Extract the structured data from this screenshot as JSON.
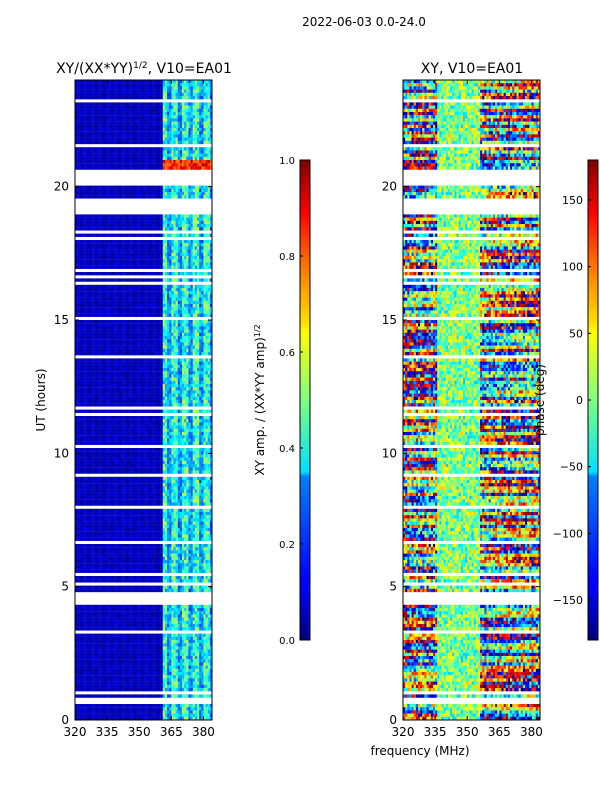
{
  "figure_title": "2022-06-03 0.0-24.0",
  "shared_xlabel": "frequency (MHz)",
  "chart_data": [
    {
      "type": "heatmap",
      "title": "XY/(XX*YY)^{1/2}, V10=EA01",
      "title_main": "XY/(XX*YY)",
      "title_exp": "1/2",
      "title_tail": ", V10=EA01",
      "xlabel": "frequency (MHz)",
      "ylabel": "UT (hours)",
      "xlim": [
        320,
        384
      ],
      "ylim": [
        0,
        24
      ],
      "xticks": [
        320,
        335,
        350,
        365,
        380
      ],
      "yticks": [
        0,
        5,
        10,
        15,
        20
      ],
      "colorbar": {
        "label": "XY amp. / (XX*YY amp)^{1/2}",
        "label_main": "XY amp. / (XX*YY amp)",
        "label_exp": "1/2",
        "range": [
          0.0,
          1.0
        ],
        "ticks": [
          "0.0",
          "0.2",
          "0.4",
          "0.6",
          "0.8",
          "1.0"
        ],
        "colormap": "jet"
      },
      "description": "Mostly low amplitude (~0.05) across 320-360 MHz; bright striped band 361-384 MHz (~0.2-0.55) with a hot patch near 20.5 UT (~0.85-0.95). Horizontal white gaps are flagged times."
    },
    {
      "type": "heatmap",
      "title": "XY, V10=EA01",
      "xlabel": "frequency (MHz)",
      "ylabel": "",
      "xlim": [
        320,
        384
      ],
      "ylim": [
        0,
        24
      ],
      "xticks": [
        320,
        335,
        350,
        365,
        380
      ],
      "yticks": [
        0,
        5,
        10,
        15,
        20
      ],
      "colorbar": {
        "label": "phase (deg)",
        "range": [
          -180,
          180
        ],
        "ticks": [
          "150",
          "100",
          "50",
          "0",
          "−50",
          "−100",
          "−150"
        ],
        "colormap": "jet"
      },
      "description": "Noisy XY phase spanning -180..180 deg; greenish near 0 deg around 336-356 MHz, varied phase elsewhere, with horizontal white gaps for flagged times."
    }
  ]
}
